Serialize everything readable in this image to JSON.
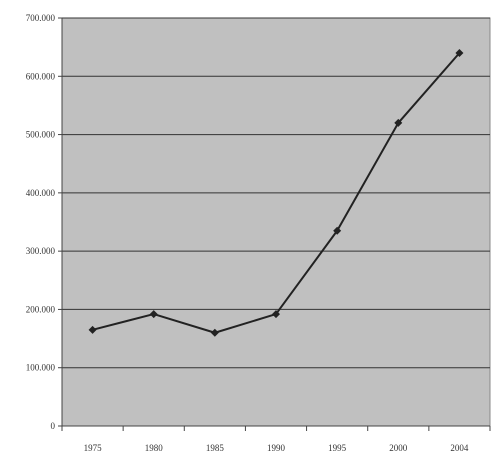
{
  "chart_data": {
    "type": "line",
    "title": "",
    "xlabel": "",
    "ylabel": "",
    "categories": [
      "1975",
      "1980",
      "1985",
      "1990",
      "1995",
      "2000",
      "2004"
    ],
    "series": [
      {
        "values": [
          165000,
          192000,
          160000,
          192000,
          335000,
          520000,
          640000
        ]
      }
    ],
    "ylim": [
      0,
      700000
    ],
    "yticks": [
      0,
      100000,
      200000,
      300000,
      400000,
      500000,
      600000,
      700000
    ],
    "ytick_labels": [
      "0",
      "100.000",
      "200.000",
      "300.000",
      "400.000",
      "500.000",
      "600.000",
      "700.000"
    ],
    "grid": true,
    "legend": "none",
    "colors": {
      "plot_background": "#c0c0c0",
      "gridline": "#333333",
      "line": "#222222",
      "marker": "#222222"
    }
  }
}
